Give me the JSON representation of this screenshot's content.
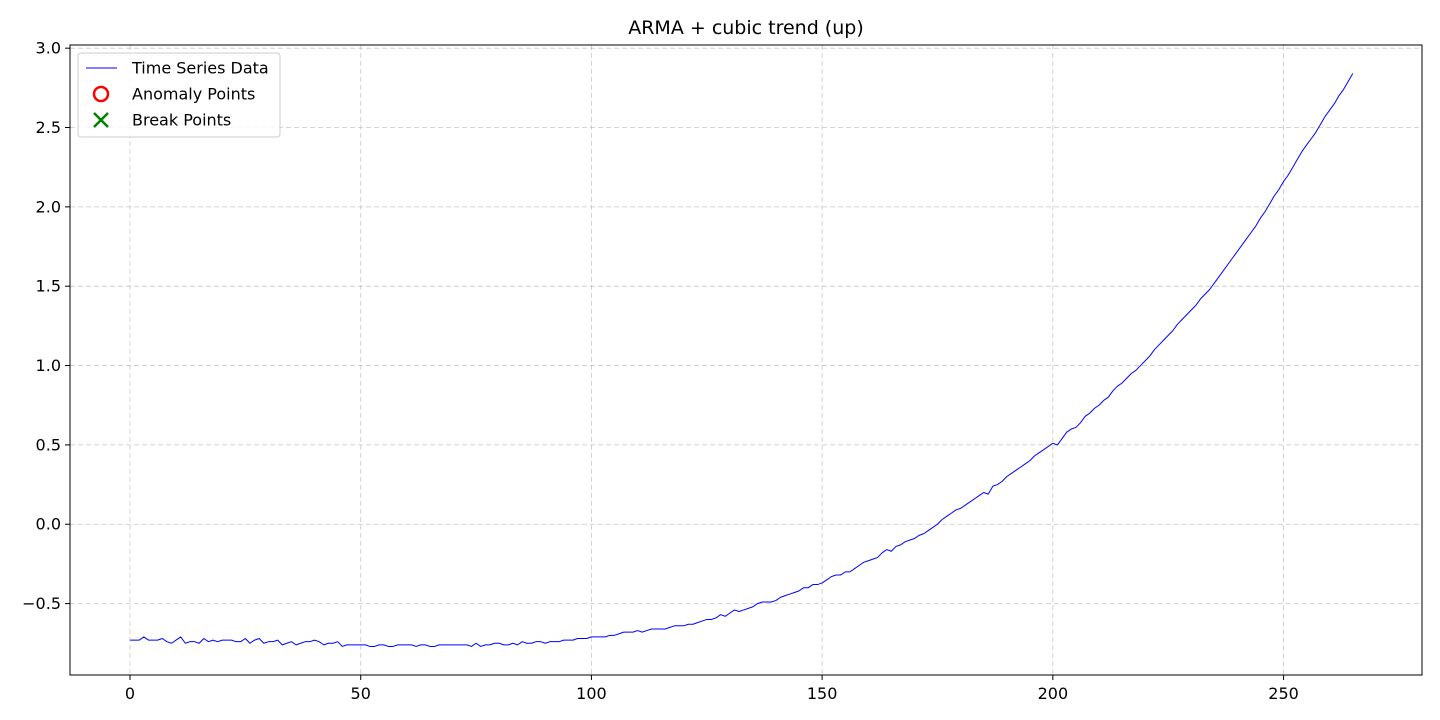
{
  "chart_data": {
    "type": "line",
    "title": "ARMA + cubic trend (up)",
    "xlabel": "",
    "ylabel": "",
    "xlim": [
      -13,
      280
    ],
    "ylim": [
      -0.95,
      3.02
    ],
    "x_ticks": [
      0,
      50,
      100,
      150,
      200,
      250
    ],
    "x_tick_labels": [
      "0",
      "50",
      "100",
      "150",
      "200",
      "250"
    ],
    "y_ticks": [
      -0.5,
      0.0,
      0.5,
      1.0,
      1.5,
      2.0,
      2.5,
      3.0
    ],
    "y_tick_labels": [
      "−0.5",
      "0.0",
      "0.5",
      "1.0",
      "1.5",
      "2.0",
      "2.5",
      "3.0"
    ],
    "grid": true,
    "legend_position": "top-left",
    "legend": [
      {
        "label": "Time Series Data",
        "marker": "line",
        "color": "#0000ff"
      },
      {
        "label": "Anomaly Points",
        "marker": "circle",
        "color": "#ff0000"
      },
      {
        "label": "Break Points",
        "marker": "x",
        "color": "#008000"
      }
    ],
    "series": [
      {
        "name": "Time Series Data",
        "color": "#0000ff",
        "x_start": 0,
        "x_step": 1,
        "values": [
          -0.73,
          -0.73,
          -0.73,
          -0.71,
          -0.73,
          -0.73,
          -0.73,
          -0.72,
          -0.74,
          -0.75,
          -0.73,
          -0.71,
          -0.75,
          -0.74,
          -0.74,
          -0.75,
          -0.72,
          -0.74,
          -0.73,
          -0.74,
          -0.73,
          -0.73,
          -0.73,
          -0.74,
          -0.74,
          -0.72,
          -0.75,
          -0.73,
          -0.72,
          -0.75,
          -0.74,
          -0.74,
          -0.73,
          -0.76,
          -0.75,
          -0.74,
          -0.76,
          -0.75,
          -0.74,
          -0.74,
          -0.73,
          -0.74,
          -0.76,
          -0.75,
          -0.75,
          -0.74,
          -0.77,
          -0.76,
          -0.76,
          -0.76,
          -0.76,
          -0.76,
          -0.77,
          -0.77,
          -0.76,
          -0.76,
          -0.77,
          -0.77,
          -0.76,
          -0.76,
          -0.76,
          -0.76,
          -0.77,
          -0.76,
          -0.76,
          -0.77,
          -0.77,
          -0.76,
          -0.76,
          -0.76,
          -0.76,
          -0.76,
          -0.76,
          -0.76,
          -0.77,
          -0.75,
          -0.77,
          -0.76,
          -0.76,
          -0.75,
          -0.75,
          -0.76,
          -0.76,
          -0.75,
          -0.76,
          -0.74,
          -0.75,
          -0.75,
          -0.74,
          -0.74,
          -0.75,
          -0.74,
          -0.74,
          -0.74,
          -0.73,
          -0.73,
          -0.73,
          -0.72,
          -0.72,
          -0.72,
          -0.71,
          -0.71,
          -0.71,
          -0.71,
          -0.7,
          -0.7,
          -0.69,
          -0.68,
          -0.68,
          -0.68,
          -0.67,
          -0.68,
          -0.67,
          -0.66,
          -0.66,
          -0.66,
          -0.66,
          -0.65,
          -0.64,
          -0.64,
          -0.64,
          -0.63,
          -0.63,
          -0.62,
          -0.61,
          -0.6,
          -0.6,
          -0.59,
          -0.57,
          -0.58,
          -0.56,
          -0.54,
          -0.55,
          -0.54,
          -0.53,
          -0.52,
          -0.5,
          -0.49,
          -0.49,
          -0.49,
          -0.48,
          -0.46,
          -0.45,
          -0.44,
          -0.43,
          -0.42,
          -0.4,
          -0.4,
          -0.38,
          -0.38,
          -0.37,
          -0.35,
          -0.33,
          -0.32,
          -0.32,
          -0.3,
          -0.3,
          -0.28,
          -0.26,
          -0.24,
          -0.23,
          -0.22,
          -0.21,
          -0.18,
          -0.16,
          -0.17,
          -0.14,
          -0.13,
          -0.11,
          -0.1,
          -0.09,
          -0.07,
          -0.06,
          -0.04,
          -0.02,
          0.0,
          0.03,
          0.05,
          0.07,
          0.09,
          0.1,
          0.12,
          0.14,
          0.16,
          0.18,
          0.2,
          0.19,
          0.24,
          0.25,
          0.27,
          0.3,
          0.32,
          0.34,
          0.36,
          0.38,
          0.4,
          0.43,
          0.45,
          0.47,
          0.49,
          0.51,
          0.5,
          0.54,
          0.58,
          0.6,
          0.61,
          0.64,
          0.68,
          0.7,
          0.73,
          0.75,
          0.78,
          0.8,
          0.84,
          0.87,
          0.89,
          0.92,
          0.95,
          0.97,
          1.0,
          1.03,
          1.06,
          1.1,
          1.13,
          1.16,
          1.19,
          1.22,
          1.26,
          1.29,
          1.32,
          1.35,
          1.38,
          1.42,
          1.45,
          1.48,
          1.52,
          1.56,
          1.6,
          1.64,
          1.68,
          1.72,
          1.76,
          1.8,
          1.84,
          1.88,
          1.93,
          1.97,
          2.02,
          2.07,
          2.11,
          2.16,
          2.2,
          2.25,
          2.3,
          2.35,
          2.39,
          2.43,
          2.47,
          2.52,
          2.57,
          2.61,
          2.65,
          2.7,
          2.74,
          2.79,
          2.84
        ]
      }
    ],
    "anomaly_points": [],
    "break_points": []
  }
}
